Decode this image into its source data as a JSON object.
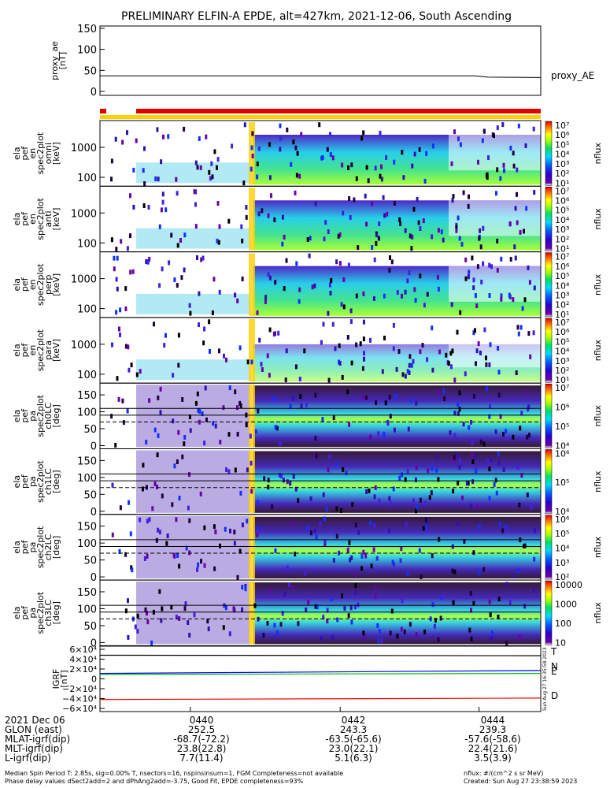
{
  "title": "PRELIMINARY ELFIN-A EPDE, alt=427km, 2021-12-06, South Ascending",
  "proxy_panel": {
    "ylabel": "proxy_ae [nT]",
    "yticks": [
      "150",
      "100",
      "50",
      "0"
    ],
    "legend": "proxy_AE"
  },
  "spectrogram_panels": [
    {
      "ylabel": "ela pef en spec2plot omni [keV]",
      "yticks": [
        "1000",
        "100"
      ],
      "cbar_ticks": [
        "10⁷",
        "10⁶",
        "10⁵",
        "10⁴",
        "10³",
        "10²",
        "10¹"
      ],
      "zlabel": "nflux"
    },
    {
      "ylabel": "ela pef en spec2plot anti [keV]",
      "yticks": [
        "1000",
        "100"
      ],
      "cbar_ticks": [
        "10⁷",
        "10⁶",
        "10⁵",
        "10⁴",
        "10³",
        "10²",
        "10¹"
      ],
      "zlabel": "nflux"
    },
    {
      "ylabel": "ela pef en spec2plot perp [keV]",
      "yticks": [
        "1000",
        "100"
      ],
      "cbar_ticks": [
        "10⁷",
        "10⁶",
        "10⁵",
        "10⁴",
        "10³",
        "10²",
        "10¹"
      ],
      "zlabel": "nflux"
    },
    {
      "ylabel": "ela pef en spec2plot para [keV]",
      "yticks": [
        "1000",
        "100"
      ],
      "cbar_ticks": [
        "10⁷",
        "10⁶",
        "10⁵",
        "10⁴",
        "10³",
        "10²",
        "10¹"
      ],
      "zlabel": "nflux"
    },
    {
      "ylabel": "ela pef pa spec2plot ch0LC [deg]",
      "yticks": [
        "150",
        "100",
        "50",
        "0"
      ],
      "cbar_ticks": [
        "10⁷",
        "10⁶",
        "10⁵",
        "10⁴"
      ],
      "zlabel": "nflux"
    },
    {
      "ylabel": "ela pef pa spec2plot ch1LC [deg]",
      "yticks": [
        "150",
        "100",
        "50",
        "0"
      ],
      "cbar_ticks": [
        "10⁶",
        "10⁵",
        "10⁴"
      ],
      "zlabel": "nflux"
    },
    {
      "ylabel": "ela pef pa spec2plot ch2LC [deg]",
      "yticks": [
        "150",
        "100",
        "50",
        "0"
      ],
      "cbar_ticks": [
        "10⁶",
        "10⁵",
        "10⁴",
        "10³",
        "10²"
      ],
      "zlabel": "nflux"
    },
    {
      "ylabel": "ela pef pa spec2plot ch3LC [deg]",
      "yticks": [
        "150",
        "100",
        "50",
        "0"
      ],
      "cbar_ticks": [
        "10000",
        "1000",
        "100",
        "10"
      ],
      "zlabel": "nflux"
    }
  ],
  "igrf_panel": {
    "ylabel": "IGRF [nT]",
    "yticks": [
      "6×10⁴",
      "4×10⁴",
      "2×10⁴",
      "0",
      "−2×10⁴",
      "−4×10⁴",
      "−6×10⁴"
    ],
    "legend": [
      {
        "name": "T",
        "color": "#000000"
      },
      {
        "name": "N",
        "color": "#0000ff"
      },
      {
        "name": "E",
        "color": "#00c000"
      },
      {
        "name": "D",
        "color": "#ff0000"
      }
    ],
    "side_note": "Sun Aug 27 16:35:58 2023"
  },
  "time_axis": {
    "row_labels": [
      "2021 Dec 06",
      "GLON (east)",
      "MLAT-igrf(dip)",
      "MLT-igrf(dip)",
      "L-igrf(dip)"
    ],
    "columns": [
      {
        "time": "0440",
        "glon": "252.5",
        "mlat": "-68.7(-72.2)",
        "mlt": "23.8(22.8)",
        "l": "7.7(11.4)"
      },
      {
        "time": "0442",
        "glon": "243.3",
        "mlat": "-63.5(-65.6)",
        "mlt": "23.0(22.1)",
        "l": "5.1(6.3)"
      },
      {
        "time": "0444",
        "glon": "239.3",
        "mlat": "-57.6(-58.6)",
        "mlt": "22.4(21.6)",
        "l": "3.5(3.9)"
      }
    ]
  },
  "notes": {
    "line1_left": "Median Spin Period T: 2.85s, sig=0.00% T, nsectors=16, nspinsinsum=1, FGM Completeness=not available",
    "line1_right": "nflux: #/(cm^2 s sr MeV)",
    "line2_left": "Phase delay values dSect2add=2 and dPhAng2add=-3.75, Good Fit, EPDE completeness=93%",
    "line2_right": "Created: Sun Aug 27 23:38:59 2023"
  },
  "chart_data": {
    "type": "heatmap",
    "title": "PRELIMINARY ELFIN-A EPDE, alt=427km, 2021-12-06, South Ascending",
    "time_ticks": [
      "0440",
      "0442",
      "0444"
    ],
    "proxy_ae": {
      "name": "proxy_AE",
      "ylim": [
        0,
        150
      ],
      "x": [
        0,
        0.85,
        0.88,
        1.0
      ],
      "values": [
        37,
        37,
        34,
        33
      ]
    },
    "igrf": {
      "ylim": [
        -60000,
        60000
      ],
      "series": [
        {
          "name": "T",
          "color": "#000000",
          "x": [
            0,
            1
          ],
          "values": [
            48000,
            47000
          ]
        },
        {
          "name": "N",
          "color": "#0000ff",
          "x": [
            0,
            1
          ],
          "values": [
            11000,
            17000
          ]
        },
        {
          "name": "E",
          "color": "#00c000",
          "x": [
            0,
            1
          ],
          "values": [
            9000,
            11000
          ]
        },
        {
          "name": "D",
          "color": "#ff0000",
          "x": [
            0,
            1
          ],
          "values": [
            -42000,
            -39000
          ]
        }
      ]
    },
    "colormap": "rainbow (purple-blue-cyan-green-yellow-red)",
    "panels": [
      "omni",
      "anti",
      "perp",
      "para",
      "ch0LC",
      "ch1LC",
      "ch2LC",
      "ch3LC"
    ]
  }
}
